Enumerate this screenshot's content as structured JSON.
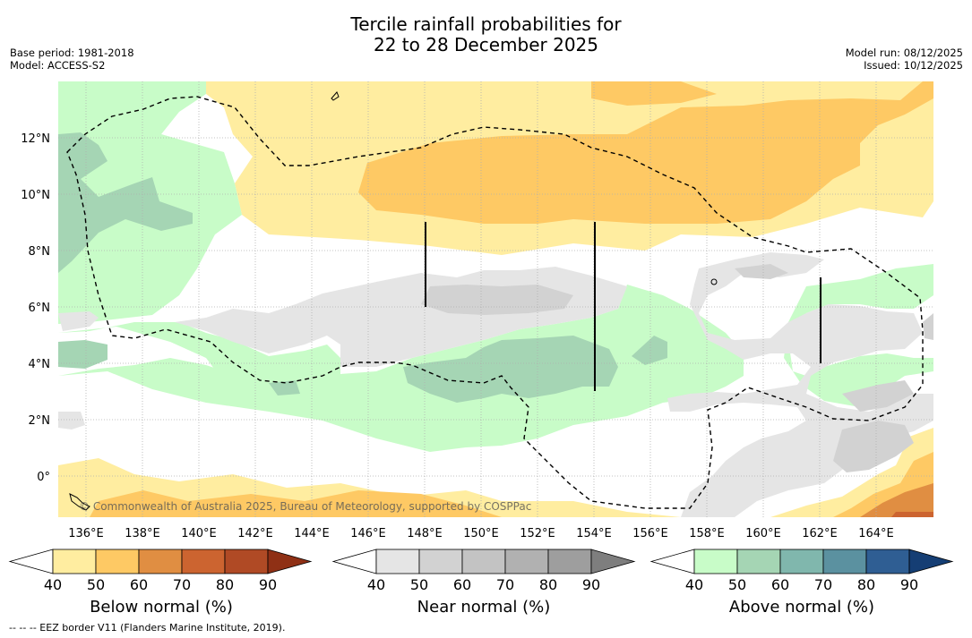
{
  "title": {
    "line1": "Tercile rainfall probabilities for",
    "line2": "22 to 28 December 2025"
  },
  "meta_left": {
    "base_period": "Base period: 1981-2018",
    "model": "Model: ACCESS-S2"
  },
  "meta_right": {
    "model_run": "Model run: 08/12/2025",
    "issued": "Issued: 10/12/2025"
  },
  "map": {
    "lon_ticks": [
      "136°E",
      "138°E",
      "140°E",
      "142°E",
      "144°E",
      "146°E",
      "148°E",
      "150°E",
      "152°E",
      "154°E",
      "156°E",
      "158°E",
      "160°E",
      "162°E",
      "164°E"
    ],
    "lat_ticks": [
      "12°N",
      "10°N",
      "8°N",
      "6°N",
      "4°N",
      "2°N",
      "0°"
    ],
    "copyright": "© Commonwealth of Australia 2025, Bureau of Meteorology, supported by COSPPac"
  },
  "colorbars": [
    {
      "name": "below",
      "label": "Below normal (%)",
      "ticks": [
        "40",
        "50",
        "60",
        "70",
        "80",
        "90"
      ],
      "colors": [
        "#ffffff",
        "#ffeda0",
        "#fec964",
        "#e08e42",
        "#cc6430",
        "#b04a25",
        "#8f3015"
      ]
    },
    {
      "name": "near",
      "label": "Near normal (%)",
      "ticks": [
        "40",
        "50",
        "60",
        "70",
        "80",
        "90"
      ],
      "colors": [
        "#ffffff",
        "#e5e5e5",
        "#d2d2d2",
        "#c3c3c3",
        "#b1b1b1",
        "#9e9e9e",
        "#7e7e7e"
      ]
    },
    {
      "name": "above",
      "label": "Above normal (%)",
      "ticks": [
        "40",
        "50",
        "60",
        "70",
        "80",
        "90"
      ],
      "colors": [
        "#ffffff",
        "#c8fcc8",
        "#a5d5b4",
        "#80b7ad",
        "#5b91a0",
        "#2f5e93",
        "#153e74"
      ]
    }
  ],
  "footnote": "-- -- -- EEZ border V11 (Flanders Marine Institute, 2019)."
}
